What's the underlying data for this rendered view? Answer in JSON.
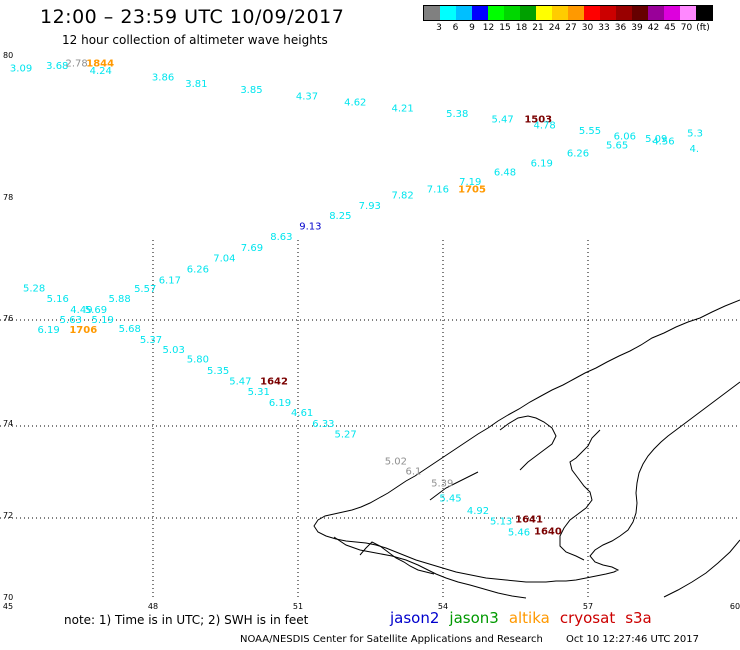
{
  "title": "12:00 – 23:59 UTC 10/09/2017",
  "subtitle": "12 hour collection of altimeter wave heights",
  "legend": {
    "colors": [
      "#808080",
      "#00ffff",
      "#00bfff",
      "#0000ff",
      "#00ff00",
      "#00d700",
      "#00a000",
      "#ffff00",
      "#ffcc00",
      "#ff9900",
      "#ff0000",
      "#cc0000",
      "#990000",
      "#660000",
      "#990099",
      "#dd00dd",
      "#ff88ff",
      "#000000"
    ],
    "ticks": [
      "3",
      "6",
      "9",
      "12",
      "15",
      "18",
      "21",
      "24",
      "27",
      "30",
      "33",
      "36",
      "39",
      "42",
      "45",
      "70",
      "(ft)"
    ]
  },
  "axes": {
    "x_ticks": [
      "45",
      "48",
      "51",
      "54",
      "57",
      "60"
    ],
    "y_ticks": [
      "80",
      "78",
      "76",
      "74",
      "72",
      "70"
    ]
  },
  "colors": {
    "cyan": "#00e5ee",
    "gray": "#909090",
    "orange": "#ff9900",
    "darkred": "#7a0000",
    "blue": "#0000cc"
  },
  "labels": [
    {
      "text": "3.09",
      "c": "cyan",
      "x": 0.04,
      "y": 9.84
    },
    {
      "text": "3.68",
      "c": "cyan",
      "x": 0.79,
      "y": 9.89
    },
    {
      "text": "2.78",
      "c": "gray",
      "x": 1.19,
      "y": 9.93
    },
    {
      "text": "1844",
      "c": "orange",
      "x": 1.62,
      "y": 9.93,
      "bold": true
    },
    {
      "text": "4.24",
      "c": "cyan",
      "x": 1.69,
      "y": 9.79
    },
    {
      "text": "3.86",
      "c": "cyan",
      "x": 2.98,
      "y": 9.67
    },
    {
      "text": "3.81",
      "c": "cyan",
      "x": 3.67,
      "y": 9.55
    },
    {
      "text": "3.85",
      "c": "cyan",
      "x": 4.81,
      "y": 9.44
    },
    {
      "text": "4.37",
      "c": "cyan",
      "x": 5.96,
      "y": 9.32
    },
    {
      "text": "4.62",
      "c": "cyan",
      "x": 6.96,
      "y": 9.21
    },
    {
      "text": "4.21",
      "c": "cyan",
      "x": 7.94,
      "y": 9.09
    },
    {
      "text": "5.38",
      "c": "cyan",
      "x": 9.07,
      "y": 8.99
    },
    {
      "text": "5.47",
      "c": "cyan",
      "x": 10.01,
      "y": 8.89
    },
    {
      "text": "1503",
      "c": "darkred",
      "x": 10.69,
      "y": 8.89,
      "bold": true
    },
    {
      "text": "4.78",
      "c": "cyan",
      "x": 10.88,
      "y": 8.78
    },
    {
      "text": "5.55",
      "c": "cyan",
      "x": 11.82,
      "y": 8.67
    },
    {
      "text": "6.06",
      "c": "cyan",
      "x": 12.54,
      "y": 8.57
    },
    {
      "text": "5.09",
      "c": "cyan",
      "x": 13.19,
      "y": 8.52
    },
    {
      "text": "4.56",
      "c": "cyan",
      "x": 13.34,
      "y": 8.48
    },
    {
      "text": "5.3",
      "c": "cyan",
      "x": 14.06,
      "y": 8.63
    },
    {
      "text": "5.65",
      "c": "cyan",
      "x": 12.38,
      "y": 8.4
    },
    {
      "text": "4.",
      "c": "cyan",
      "x": 14.11,
      "y": 8.34
    },
    {
      "text": "6.26",
      "c": "cyan",
      "x": 11.57,
      "y": 8.25
    },
    {
      "text": "6.19",
      "c": "cyan",
      "x": 10.82,
      "y": 8.07
    },
    {
      "text": "6.48",
      "c": "cyan",
      "x": 10.06,
      "y": 7.9
    },
    {
      "text": "7.19",
      "c": "cyan",
      "x": 9.34,
      "y": 7.72
    },
    {
      "text": "7.16",
      "c": "cyan",
      "x": 8.67,
      "y": 7.58
    },
    {
      "text": "1705",
      "c": "orange",
      "x": 9.32,
      "y": 7.58,
      "bold": true
    },
    {
      "text": "7.82",
      "c": "cyan",
      "x": 7.94,
      "y": 7.47
    },
    {
      "text": "7.93",
      "c": "cyan",
      "x": 7.26,
      "y": 7.27
    },
    {
      "text": "8.25",
      "c": "cyan",
      "x": 6.65,
      "y": 7.08
    },
    {
      "text": "9.13",
      "c": "blue",
      "x": 6.03,
      "y": 6.89
    },
    {
      "text": "8.63",
      "c": "cyan",
      "x": 5.43,
      "y": 6.69
    },
    {
      "text": "7.69",
      "c": "cyan",
      "x": 4.82,
      "y": 6.49
    },
    {
      "text": "7.04",
      "c": "cyan",
      "x": 4.25,
      "y": 6.29
    },
    {
      "text": "6.26",
      "c": "cyan",
      "x": 3.7,
      "y": 6.08
    },
    {
      "text": "6.17",
      "c": "cyan",
      "x": 3.12,
      "y": 5.88
    },
    {
      "text": "5.28",
      "c": "cyan",
      "x": 0.31,
      "y": 5.73
    },
    {
      "text": "5.57",
      "c": "cyan",
      "x": 2.61,
      "y": 5.72
    },
    {
      "text": "5.16",
      "c": "cyan",
      "x": 0.8,
      "y": 5.53
    },
    {
      "text": "5.88",
      "c": "cyan",
      "x": 2.08,
      "y": 5.53
    },
    {
      "text": "4.49",
      "c": "cyan",
      "x": 1.29,
      "y": 5.33
    },
    {
      "text": "5.69",
      "c": "cyan",
      "x": 1.59,
      "y": 5.33
    },
    {
      "text": "5.63",
      "c": "cyan",
      "x": 1.07,
      "y": 5.14
    },
    {
      "text": "5.19",
      "c": "cyan",
      "x": 1.73,
      "y": 5.14
    },
    {
      "text": "6.19",
      "c": "cyan",
      "x": 0.61,
      "y": 4.95
    },
    {
      "text": "1706",
      "c": "orange",
      "x": 1.27,
      "y": 4.95,
      "bold": true
    },
    {
      "text": "5.68",
      "c": "cyan",
      "x": 2.29,
      "y": 4.97
    },
    {
      "text": "5.37",
      "c": "cyan",
      "x": 2.73,
      "y": 4.77
    },
    {
      "text": "5.03",
      "c": "cyan",
      "x": 3.2,
      "y": 4.58
    },
    {
      "text": "5.80",
      "c": "cyan",
      "x": 3.7,
      "y": 4.4
    },
    {
      "text": "5.35",
      "c": "cyan",
      "x": 4.12,
      "y": 4.19
    },
    {
      "text": "5.47",
      "c": "cyan",
      "x": 4.58,
      "y": 3.99
    },
    {
      "text": "1642",
      "c": "darkred",
      "x": 5.22,
      "y": 3.99,
      "bold": true
    },
    {
      "text": "5.31",
      "c": "cyan",
      "x": 4.96,
      "y": 3.79
    },
    {
      "text": "6.19",
      "c": "cyan",
      "x": 5.4,
      "y": 3.59
    },
    {
      "text": "4.61",
      "c": "cyan",
      "x": 5.86,
      "y": 3.4
    },
    {
      "text": "6.33",
      "c": "cyan",
      "x": 6.3,
      "y": 3.2
    },
    {
      "text": "5.27",
      "c": "cyan",
      "x": 6.76,
      "y": 3.0
    },
    {
      "text": "5.02",
      "c": "gray",
      "x": 7.8,
      "y": 2.5
    },
    {
      "text": "6.1",
      "c": "gray",
      "x": 8.23,
      "y": 2.31
    },
    {
      "text": "5.39",
      "c": "gray",
      "x": 8.76,
      "y": 2.08
    },
    {
      "text": "5.45",
      "c": "cyan",
      "x": 8.93,
      "y": 1.8
    },
    {
      "text": "4.92",
      "c": "cyan",
      "x": 9.5,
      "y": 1.57
    },
    {
      "text": "1641",
      "c": "darkred",
      "x": 10.5,
      "y": 1.41,
      "bold": true
    },
    {
      "text": "5.13",
      "c": "cyan",
      "x": 9.98,
      "y": 1.37
    },
    {
      "text": "5.46",
      "c": "cyan",
      "x": 10.35,
      "y": 1.17
    },
    {
      "text": "1640",
      "c": "darkred",
      "x": 10.89,
      "y": 1.19,
      "bold": true
    }
  ],
  "note": "note:  1) Time is in UTC; 2) SWH is in feet",
  "satellites": [
    {
      "name": "jason2",
      "color": "#0000cc"
    },
    {
      "name": "jason3",
      "color": "#009900"
    },
    {
      "name": "altika",
      "color": "#ff9900"
    },
    {
      "name": "cryosat",
      "color": "#cc0000"
    },
    {
      "name": "s3a",
      "color": "#cc0000"
    }
  ],
  "footer": {
    "agency": "NOAA/NESDIS Center for Satellite Applications and Research",
    "timestamp": "Oct 10 12:27:46 UTC 2017"
  }
}
